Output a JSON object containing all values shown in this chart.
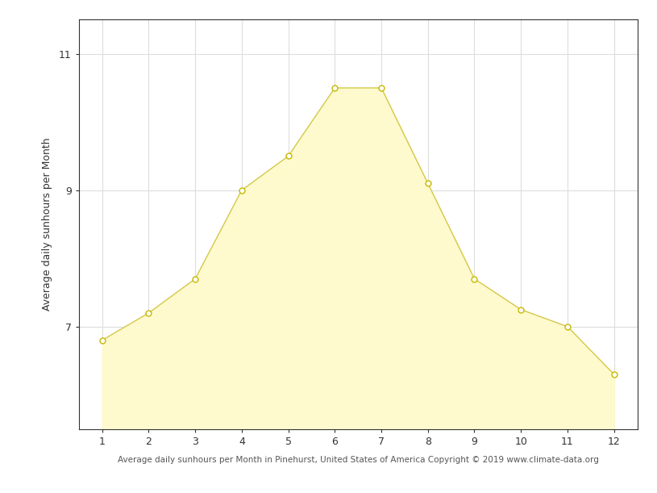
{
  "months": [
    1,
    2,
    3,
    4,
    5,
    6,
    7,
    8,
    9,
    10,
    11,
    12
  ],
  "sunhours": [
    6.8,
    7.2,
    7.7,
    9.0,
    9.5,
    10.5,
    10.5,
    9.1,
    7.7,
    7.25,
    7.0,
    6.3
  ],
  "ylabel": "Average daily sunhours per Month",
  "xlabel": "Average daily sunhours per Month in Pinehurst, United States of America Copyright © 2019 www.climate-data.org",
  "ylim": [
    5.5,
    11.5
  ],
  "xlim": [
    0.5,
    12.5
  ],
  "yticks": [
    7,
    9,
    11
  ],
  "xticks": [
    1,
    2,
    3,
    4,
    5,
    6,
    7,
    8,
    9,
    10,
    11,
    12
  ],
  "fill_color": "#FFFACD",
  "line_color": "#D4C84A",
  "marker_fill_color": "#FFFFFF",
  "marker_edge_color": "#C8B800",
  "grid_color": "#DDDDDD",
  "background_color": "#FFFFFF",
  "spine_color": "#333333",
  "tick_label_color": "#333333",
  "ylabel_color": "#333333",
  "xlabel_color": "#555555"
}
